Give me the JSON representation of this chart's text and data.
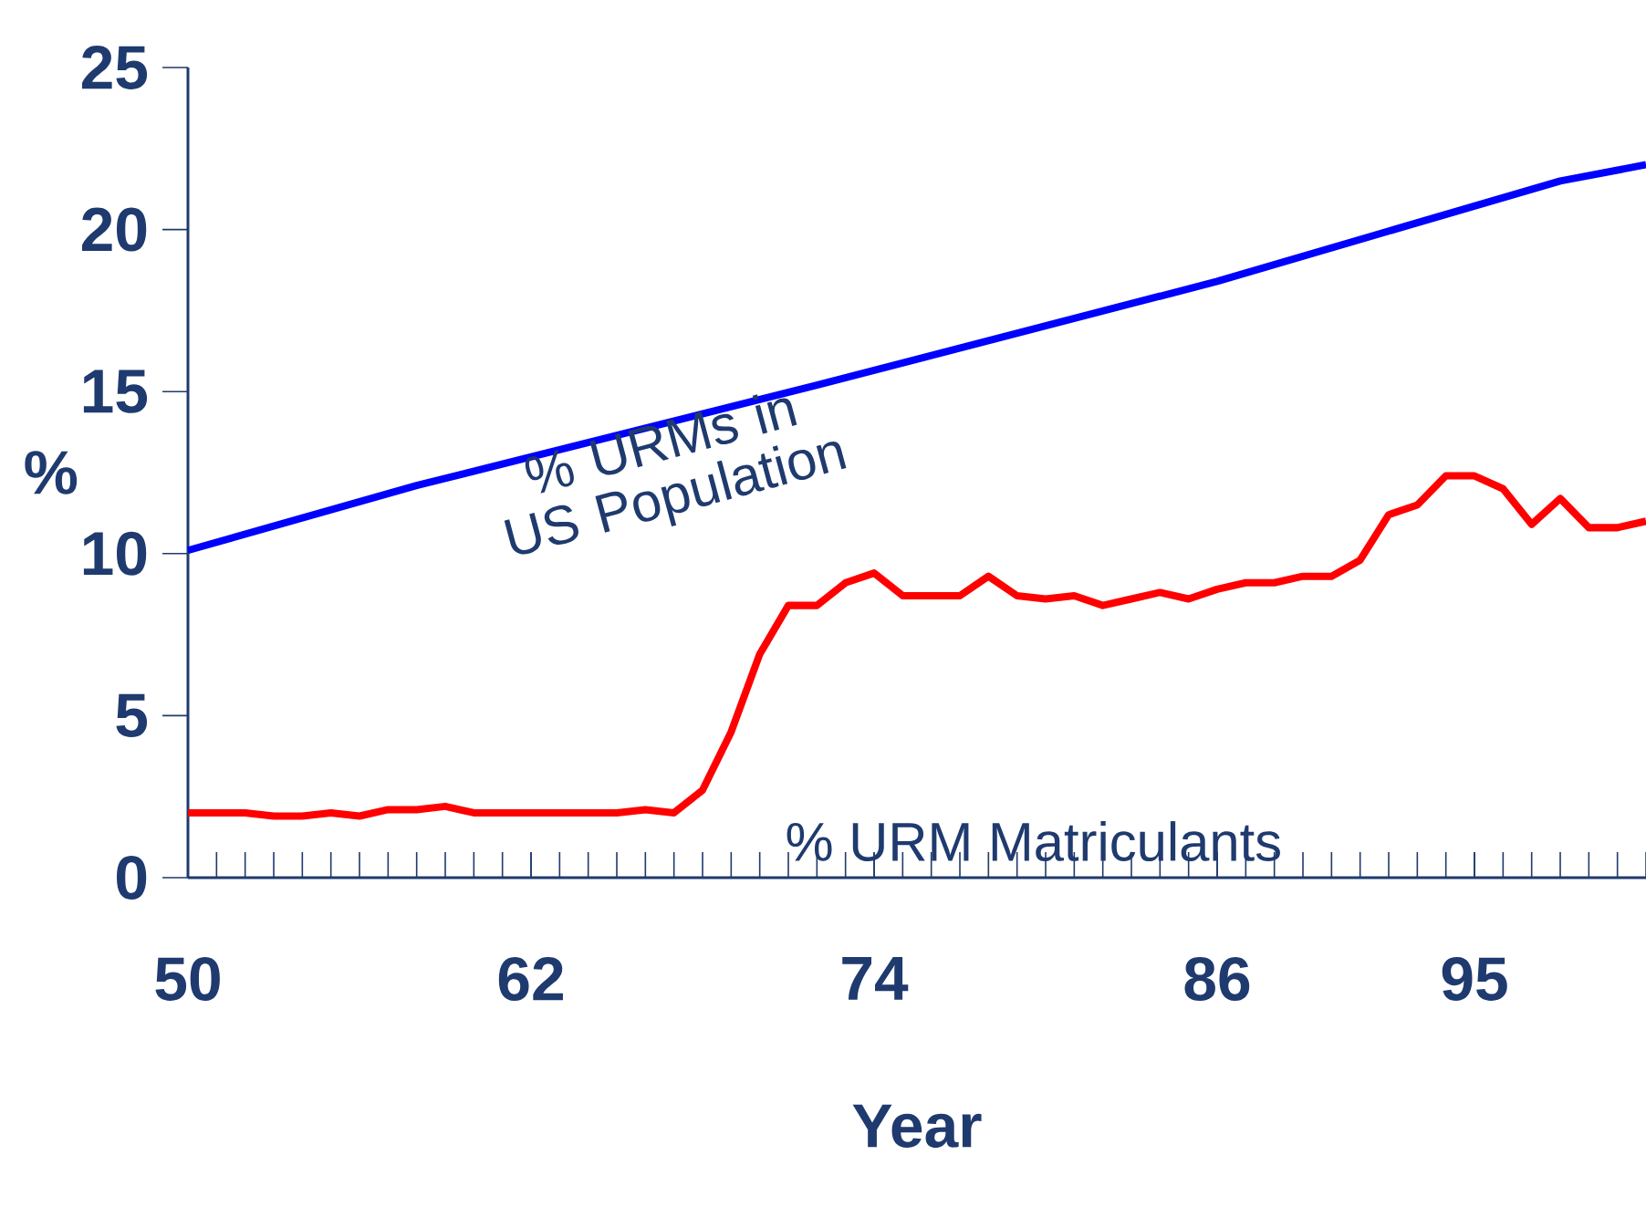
{
  "chart_data": {
    "type": "line",
    "xlabel": "Year",
    "ylabel": "%",
    "xlim": [
      1950,
      2001
    ],
    "ylim": [
      0,
      25
    ],
    "xticks": [
      {
        "value": 1950,
        "label": "50"
      },
      {
        "value": 1962,
        "label": "62"
      },
      {
        "value": 1974,
        "label": "74"
      },
      {
        "value": 1986,
        "label": "86"
      },
      {
        "value": 1995,
        "label": "95"
      }
    ],
    "yticks": [
      {
        "value": 0,
        "label": "0"
      },
      5,
      10,
      15,
      20,
      25
    ],
    "grid": false,
    "legend": false,
    "series": [
      {
        "name": "% URMs in US Population",
        "color": "#0000ff",
        "x": [
          1950,
          1958,
          1972,
          1986,
          1998,
          2001
        ],
        "values": [
          10.1,
          12.1,
          15.2,
          18.4,
          21.5,
          22.0
        ]
      },
      {
        "name": "% URM Matriculants",
        "color": "#ff0000",
        "x": [
          1950,
          1951,
          1952,
          1953,
          1954,
          1955,
          1956,
          1957,
          1958,
          1959,
          1960,
          1961,
          1962,
          1963,
          1964,
          1965,
          1966,
          1967,
          1968,
          1969,
          1970,
          1971,
          1972,
          1973,
          1974,
          1975,
          1976,
          1977,
          1978,
          1979,
          1980,
          1981,
          1982,
          1983,
          1984,
          1985,
          1986,
          1987,
          1988,
          1989,
          1990,
          1991,
          1992,
          1993,
          1994,
          1995,
          1996,
          1997,
          1998,
          1999,
          2000,
          2001
        ],
        "values": [
          2.0,
          2.0,
          2.0,
          1.9,
          1.9,
          2.0,
          1.9,
          2.1,
          2.1,
          2.2,
          2.0,
          2.0,
          2.0,
          2.0,
          2.0,
          2.0,
          2.1,
          2.0,
          2.7,
          4.5,
          6.9,
          8.4,
          8.4,
          9.1,
          9.4,
          8.7,
          8.7,
          8.7,
          9.3,
          8.7,
          8.6,
          8.7,
          8.4,
          8.6,
          8.8,
          8.6,
          8.9,
          9.1,
          9.1,
          9.3,
          9.3,
          9.8,
          11.2,
          11.5,
          12.4,
          12.4,
          12.0,
          10.9,
          11.7,
          10.8,
          10.8,
          11.0
        ]
      }
    ]
  }
}
